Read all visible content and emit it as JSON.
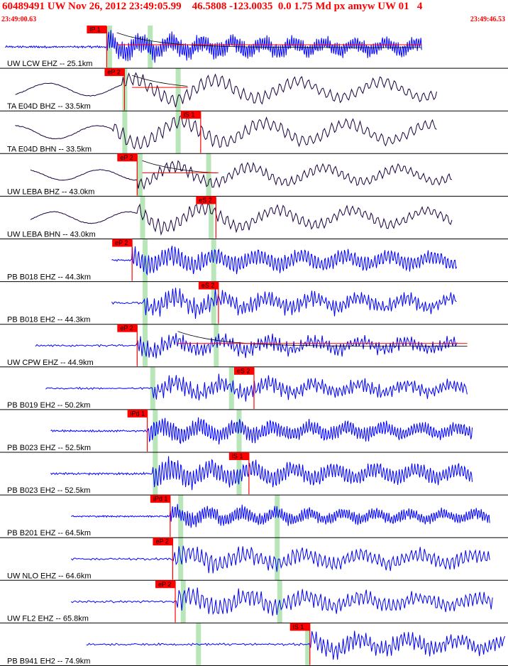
{
  "header": {
    "title": "60489491 UW Nov 26, 2012 23:49:05.99    46.5808 -123.0035  0.0 1.75 Md px amyw UW 01   4",
    "time_start": "23:49:00.63",
    "time_end": "23:49:46.53"
  },
  "colors": {
    "title": "#ff0000",
    "trace_blue": "#0000ff",
    "trace_dark": "#1a0040",
    "pick_box": "#ff0000",
    "pick_line": "#ff0000",
    "theory_band": "#b8e6b8",
    "coda_curve": "#000000",
    "grid": "#000000"
  },
  "chart_data": {
    "type": "seismogram",
    "title": "60489491 UW Nov 26, 2012 23:49:05.99    46.5808 -123.0035  0.0 1.75 Md px amyw UW 01   4",
    "x_range": [
      "23:49:00.63",
      "23:49:46.53"
    ],
    "traces": [
      {
        "label": "UW LCW EHZ -- 25.1km",
        "color": "blue",
        "start": 0.01,
        "end": 0.83,
        "amp": 0.4,
        "onset": 0.21,
        "freq": 0.9,
        "picks": [
          {
            "label": "iP 1",
            "pos": 0.21
          }
        ],
        "bands": [
          0.215,
          0.295
        ],
        "coda": [
          0.23,
          0.83
        ]
      },
      {
        "label": "TA E04D BHZ -- 33.5km",
        "color": "dark",
        "start": 0.03,
        "end": 0.86,
        "amp": 0.45,
        "onset": 0.24,
        "freq": 0.15,
        "picks": [
          {
            "label": "eP 2",
            "pos": 0.245
          }
        ],
        "bands": [
          0.245,
          0.35
        ],
        "coda": [
          0.26,
          0.37
        ]
      },
      {
        "label": "TA E04D BHN -- 33.5km",
        "color": "dark",
        "start": 0.03,
        "end": 0.86,
        "amp": 0.48,
        "onset": 0.22,
        "freq": 0.15,
        "picks": [
          {
            "label": "iS 1",
            "pos": 0.395
          }
        ],
        "bands": [
          0.245,
          0.35
        ]
      },
      {
        "label": "UW LEBA BHZ -- 43.0km",
        "color": "dark",
        "start": 0.06,
        "end": 0.89,
        "amp": 0.38,
        "onset": 0.27,
        "freq": 0.2,
        "picks": [
          {
            "label": "eP 2",
            "pos": 0.27
          }
        ],
        "bands": [
          0.275,
          0.41
        ],
        "coda": [
          0.28,
          0.43
        ]
      },
      {
        "label": "UW LEBA BHN -- 43.0km",
        "color": "dark",
        "start": 0.06,
        "end": 0.89,
        "amp": 0.42,
        "onset": 0.27,
        "freq": 0.2,
        "picks": [
          {
            "label": "eS 2",
            "pos": 0.425
          }
        ],
        "bands": [
          0.28,
          0.415
        ]
      },
      {
        "label": "PB B018 EHZ -- 44.3km",
        "color": "blue",
        "start": 0.22,
        "end": 0.9,
        "amp": 0.38,
        "onset": 0.26,
        "freq": 0.55,
        "picks": [
          {
            "label": "eP 2",
            "pos": 0.26
          }
        ],
        "bands": [
          0.285,
          0.42
        ]
      },
      {
        "label": "PB B018 EH2 -- 44.3km",
        "color": "blue",
        "start": 0.22,
        "end": 0.9,
        "amp": 0.42,
        "onset": 0.28,
        "freq": 0.5,
        "picks": [
          {
            "label": "eS 2",
            "pos": 0.43
          }
        ],
        "bands": [
          0.285,
          0.42
        ]
      },
      {
        "label": "UW CPW EHZ -- 44.9km",
        "color": "blue",
        "start": 0.07,
        "end": 0.9,
        "amp": 0.38,
        "onset": 0.27,
        "freq": 0.5,
        "picks": [
          {
            "label": "eP 2",
            "pos": 0.27
          }
        ],
        "bands": [
          0.285,
          0.425
        ],
        "coda": [
          0.35,
          0.92
        ]
      },
      {
        "label": "PB B019 EH2 -- 50.2km",
        "color": "blue",
        "start": 0.09,
        "end": 0.92,
        "amp": 0.38,
        "onset": 0.3,
        "freq": 0.5,
        "picks": [
          {
            "label": "eS 2",
            "pos": 0.5
          }
        ],
        "bands": [
          0.3,
          0.455
        ]
      },
      {
        "label": "PB B023 EHZ -- 52.5km",
        "color": "blue",
        "start": 0.1,
        "end": 0.93,
        "amp": 0.36,
        "onset": 0.29,
        "freq": 0.7,
        "picks": [
          {
            "label": "iPd 1",
            "pos": 0.29
          }
        ],
        "bands": [
          0.305,
          0.47
        ]
      },
      {
        "label": "PB B023 EH2 -- 52.5km",
        "color": "blue",
        "start": 0.1,
        "end": 0.93,
        "amp": 0.4,
        "onset": 0.3,
        "freq": 0.6,
        "picks": [
          {
            "label": "iS 1",
            "pos": 0.49
          }
        ],
        "bands": [
          0.305,
          0.47
        ]
      },
      {
        "label": "PB B201 EHZ -- 64.5km",
        "color": "blue",
        "start": 0.14,
        "end": 0.965,
        "amp": 0.3,
        "onset": 0.335,
        "freq": 0.8,
        "picks": [
          {
            "label": "iPd 1",
            "pos": 0.335
          }
        ],
        "bands": [
          0.355,
          0.545
        ]
      },
      {
        "label": "UW NLO EHZ -- 64.6km",
        "color": "blue",
        "start": 0.14,
        "end": 0.965,
        "amp": 0.4,
        "onset": 0.34,
        "freq": 0.35,
        "picks": [
          {
            "label": "eP 2",
            "pos": 0.34
          }
        ],
        "bands": [
          0.355,
          0.545
        ]
      },
      {
        "label": "UW FL2 EHZ -- 65.8km",
        "color": "blue",
        "start": 0.14,
        "end": 0.97,
        "amp": 0.4,
        "onset": 0.345,
        "freq": 0.35,
        "picks": [
          {
            "label": "eP 2",
            "pos": 0.345
          }
        ],
        "bands": [
          0.36,
          0.55
        ]
      },
      {
        "label": "PB B941 EH2 -- 74.9km",
        "color": "blue",
        "start": 0.17,
        "end": 0.995,
        "amp": 0.4,
        "onset": 0.61,
        "freq": 0.45,
        "picks": [
          {
            "label": "iS 1",
            "pos": 0.61
          }
        ],
        "bands": [
          0.39,
          0.605
        ]
      }
    ]
  }
}
